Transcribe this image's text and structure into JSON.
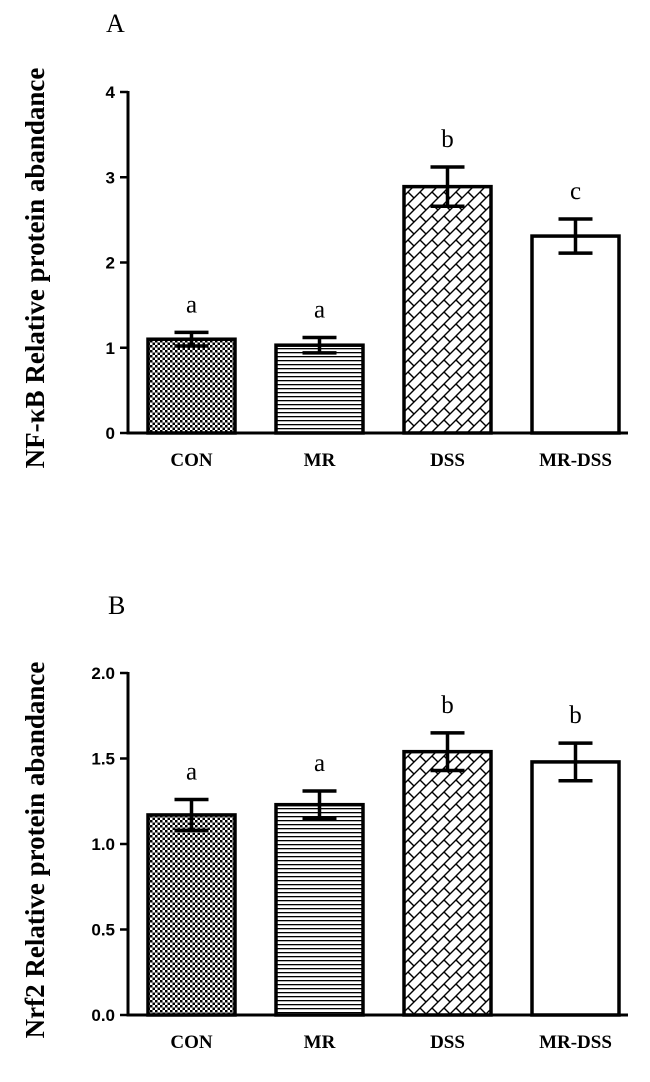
{
  "chart_data": [
    {
      "type": "bar",
      "panel": "A",
      "ylabel": "NF-κB Relative protein abandance",
      "categories": [
        "CON",
        "MR",
        "DSS",
        "MR-DSS"
      ],
      "values": [
        1.1,
        1.03,
        2.89,
        2.31
      ],
      "errors": [
        0.08,
        0.09,
        0.23,
        0.2
      ],
      "letters": [
        "a",
        "a",
        "b",
        "c"
      ],
      "patterns": [
        "checker",
        "hlines",
        "brick",
        "none"
      ],
      "ylim": [
        0,
        4
      ],
      "yticks": [
        "0",
        "1",
        "2",
        "3",
        "4"
      ],
      "ytick_values": [
        0,
        1,
        2,
        3,
        4
      ]
    },
    {
      "type": "bar",
      "panel": "B",
      "ylabel": "Nrf2 Relative protein abandance",
      "categories": [
        "CON",
        "MR",
        "DSS",
        "MR-DSS"
      ],
      "values": [
        1.17,
        1.23,
        1.54,
        1.48
      ],
      "errors": [
        0.09,
        0.08,
        0.11,
        0.11
      ],
      "letters": [
        "a",
        "a",
        "b",
        "b"
      ],
      "patterns": [
        "checker",
        "hlines",
        "brick",
        "none"
      ],
      "ylim": [
        0,
        2
      ],
      "yticks": [
        "0.0",
        "0.5",
        "1.0",
        "1.5",
        "2.0"
      ],
      "ytick_values": [
        0,
        0.5,
        1.0,
        1.5,
        2.0
      ]
    }
  ],
  "colors": {
    "ink": "#000000",
    "background": "#ffffff"
  }
}
